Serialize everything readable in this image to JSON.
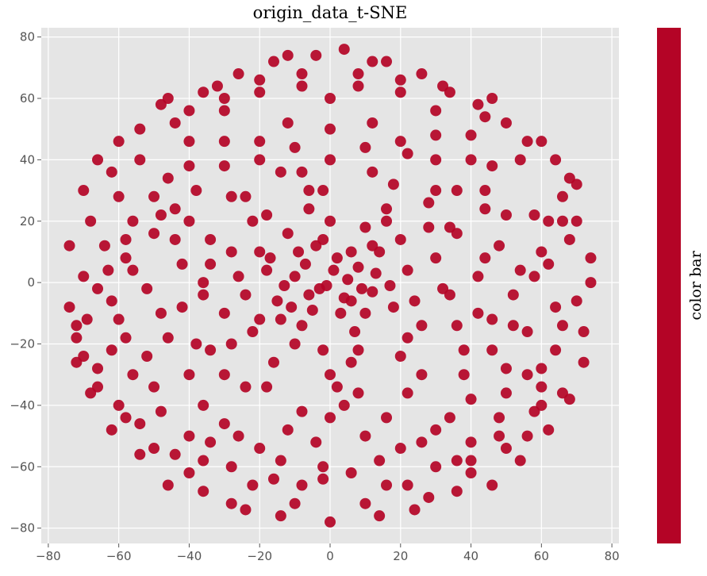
{
  "chart_data": {
    "type": "scatter",
    "title": "origin_data_t-SNE",
    "xlabel": "",
    "ylabel": "",
    "xlim": [
      -82,
      82
    ],
    "ylim": [
      -85,
      83
    ],
    "xticks": [
      -80,
      -60,
      -40,
      -20,
      0,
      20,
      40,
      60,
      80
    ],
    "yticks": [
      80,
      60,
      40,
      20,
      0,
      -20,
      -40,
      -60,
      -80
    ],
    "xtick_labels": [
      "−80",
      "−60",
      "−40",
      "−20",
      "0",
      "20",
      "40",
      "60",
      "80"
    ],
    "ytick_labels": [
      "80",
      "60",
      "40",
      "20",
      "0",
      "−20",
      "−40",
      "−60",
      "−80"
    ],
    "grid": true,
    "background": "#e5e5e5",
    "point_color": "#b40426",
    "points": [
      [
        -1,
        -1
      ],
      [
        5,
        1
      ],
      [
        -6,
        -4
      ],
      [
        8,
        5
      ],
      [
        -10,
        2
      ],
      [
        2,
        8
      ],
      [
        -4,
        12
      ],
      [
        12,
        -3
      ],
      [
        -15,
        -6
      ],
      [
        3,
        -10
      ],
      [
        -8,
        -14
      ],
      [
        14,
        10
      ],
      [
        -18,
        4
      ],
      [
        7,
        -16
      ],
      [
        18,
        -8
      ],
      [
        -12,
        16
      ],
      [
        0,
        20
      ],
      [
        -20,
        -12
      ],
      [
        22,
        4
      ],
      [
        10,
        18
      ],
      [
        -26,
        2
      ],
      [
        -2,
        -22
      ],
      [
        26,
        -14
      ],
      [
        -22,
        20
      ],
      [
        16,
        24
      ],
      [
        -30,
        -10
      ],
      [
        6,
        -26
      ],
      [
        30,
        8
      ],
      [
        -16,
        -26
      ],
      [
        32,
        -2
      ],
      [
        -34,
        14
      ],
      [
        20,
        -24
      ],
      [
        -6,
        30
      ],
      [
        -36,
        -4
      ],
      [
        36,
        16
      ],
      [
        -28,
        28
      ],
      [
        28,
        26
      ],
      [
        2,
        -34
      ],
      [
        -38,
        -20
      ],
      [
        38,
        -22
      ],
      [
        -14,
        36
      ],
      [
        12,
        36
      ],
      [
        -42,
        6
      ],
      [
        42,
        2
      ],
      [
        -24,
        -34
      ],
      [
        22,
        -36
      ],
      [
        -44,
        24
      ],
      [
        44,
        24
      ],
      [
        0,
        40
      ],
      [
        -40,
        -30
      ],
      [
        46,
        -12
      ],
      [
        -8,
        -42
      ],
      [
        -30,
        38
      ],
      [
        30,
        40
      ],
      [
        16,
        -44
      ],
      [
        -48,
        -10
      ],
      [
        48,
        12
      ],
      [
        -20,
        46
      ],
      [
        20,
        46
      ],
      [
        -50,
        16
      ],
      [
        50,
        -28
      ],
      [
        -36,
        -40
      ],
      [
        34,
        -44
      ],
      [
        0,
        50
      ],
      [
        -52,
        -24
      ],
      [
        54,
        4
      ],
      [
        -12,
        52
      ],
      [
        12,
        52
      ],
      [
        -46,
        34
      ],
      [
        46,
        38
      ],
      [
        -4,
        -52
      ],
      [
        -26,
        -50
      ],
      [
        26,
        -52
      ],
      [
        -56,
        4
      ],
      [
        56,
        -16
      ],
      [
        -40,
        46
      ],
      [
        40,
        48
      ],
      [
        -58,
        -18
      ],
      [
        58,
        22
      ],
      [
        -14,
        -58
      ],
      [
        14,
        -58
      ],
      [
        -30,
        56
      ],
      [
        30,
        56
      ],
      [
        -60,
        28
      ],
      [
        60,
        -34
      ],
      [
        -48,
        -42
      ],
      [
        48,
        -44
      ],
      [
        0,
        60
      ],
      [
        -62,
        -6
      ],
      [
        62,
        6
      ],
      [
        -20,
        62
      ],
      [
        20,
        62
      ],
      [
        -54,
        40
      ],
      [
        54,
        40
      ],
      [
        -2,
        -64
      ],
      [
        -36,
        -58
      ],
      [
        36,
        -58
      ],
      [
        -64,
        12
      ],
      [
        64,
        -22
      ],
      [
        -44,
        52
      ],
      [
        44,
        54
      ],
      [
        -66,
        -28
      ],
      [
        66,
        28
      ],
      [
        -8,
        68
      ],
      [
        8,
        68
      ],
      [
        -22,
        -66
      ],
      [
        22,
        -66
      ],
      [
        -58,
        -44
      ],
      [
        58,
        -42
      ],
      [
        -32,
        64
      ],
      [
        32,
        64
      ],
      [
        -70,
        2
      ],
      [
        70,
        -6
      ],
      [
        -68,
        20
      ],
      [
        68,
        14
      ],
      [
        -10,
        -72
      ],
      [
        10,
        -72
      ],
      [
        0,
        -78
      ],
      [
        -74,
        -8
      ],
      [
        74,
        8
      ],
      [
        -50,
        -54
      ],
      [
        50,
        -54
      ],
      [
        -40,
        -62
      ],
      [
        40,
        -62
      ],
      [
        -60,
        46
      ],
      [
        60,
        46
      ],
      [
        -72,
        -18
      ],
      [
        72,
        -16
      ],
      [
        -16,
        72
      ],
      [
        16,
        72
      ],
      [
        -4,
        74
      ],
      [
        4,
        76
      ],
      [
        -28,
        -72
      ],
      [
        28,
        -70
      ],
      [
        -66,
        -34
      ],
      [
        66,
        -36
      ],
      [
        -46,
        60
      ],
      [
        46,
        60
      ],
      [
        -62,
        -48
      ],
      [
        62,
        -48
      ],
      [
        -70,
        30
      ],
      [
        70,
        32
      ],
      [
        -2,
        -60
      ],
      [
        -34,
        6
      ],
      [
        34,
        -4
      ],
      [
        -3,
        -2
      ],
      [
        4,
        -5
      ],
      [
        -7,
        6
      ],
      [
        9,
        -2
      ],
      [
        -11,
        -8
      ],
      [
        1,
        4
      ],
      [
        6,
        10
      ],
      [
        -9,
        10
      ],
      [
        13,
        3
      ],
      [
        -13,
        -1
      ],
      [
        -5,
        -9
      ],
      [
        10,
        -10
      ],
      [
        -17,
        8
      ],
      [
        17,
        -1
      ],
      [
        -2,
        14
      ],
      [
        -24,
        -4
      ],
      [
        24,
        -6
      ],
      [
        -10,
        -20
      ],
      [
        8,
        -22
      ],
      [
        -20,
        10
      ],
      [
        20,
        14
      ],
      [
        -28,
        -20
      ],
      [
        28,
        18
      ],
      [
        -6,
        24
      ],
      [
        6,
        -6
      ],
      [
        34,
        18
      ],
      [
        -34,
        -22
      ],
      [
        -18,
        -34
      ],
      [
        18,
        32
      ],
      [
        38,
        -30
      ],
      [
        -38,
        30
      ],
      [
        -52,
        -2
      ],
      [
        52,
        -4
      ],
      [
        -42,
        -8
      ],
      [
        42,
        -10
      ],
      [
        -66,
        -2
      ],
      [
        -69,
        -12
      ],
      [
        -72,
        -14
      ],
      [
        -63,
        4
      ],
      [
        -58,
        8
      ],
      [
        -56,
        -30
      ],
      [
        56,
        -30
      ],
      [
        -60,
        -40
      ],
      [
        60,
        -40
      ],
      [
        -54,
        -56
      ],
      [
        54,
        -58
      ],
      [
        -46,
        -66
      ],
      [
        46,
        -66
      ],
      [
        -36,
        -68
      ],
      [
        36,
        -68
      ],
      [
        -24,
        -74
      ],
      [
        24,
        -74
      ],
      [
        -14,
        -76
      ],
      [
        14,
        -76
      ],
      [
        -68,
        -36
      ],
      [
        68,
        -38
      ],
      [
        -72,
        -26
      ],
      [
        72,
        -26
      ],
      [
        -74,
        12
      ],
      [
        74,
        0
      ],
      [
        -70,
        -24
      ],
      [
        62,
        20
      ],
      [
        66,
        20
      ],
      [
        70,
        20
      ],
      [
        -54,
        50
      ],
      [
        -62,
        36
      ],
      [
        -66,
        40
      ],
      [
        -36,
        62
      ],
      [
        -26,
        68
      ],
      [
        -12,
        74
      ],
      [
        12,
        72
      ],
      [
        26,
        68
      ],
      [
        34,
        62
      ],
      [
        42,
        58
      ],
      [
        50,
        52
      ],
      [
        56,
        46
      ],
      [
        64,
        40
      ],
      [
        68,
        34
      ],
      [
        -48,
        58
      ],
      [
        -40,
        56
      ],
      [
        -30,
        60
      ],
      [
        -20,
        66
      ],
      [
        -8,
        64
      ],
      [
        8,
        64
      ],
      [
        20,
        66
      ],
      [
        -58,
        14
      ],
      [
        -50,
        28
      ],
      [
        -44,
        14
      ],
      [
        -46,
        -18
      ],
      [
        -50,
        -34
      ],
      [
        -40,
        -50
      ],
      [
        -30,
        -46
      ],
      [
        -20,
        -54
      ],
      [
        -12,
        -48
      ],
      [
        0,
        -44
      ],
      [
        10,
        -50
      ],
      [
        20,
        -54
      ],
      [
        30,
        -48
      ],
      [
        40,
        -52
      ],
      [
        50,
        -36
      ],
      [
        46,
        -22
      ],
      [
        52,
        -14
      ],
      [
        44,
        8
      ],
      [
        50,
        22
      ],
      [
        44,
        30
      ],
      [
        36,
        30
      ],
      [
        40,
        40
      ],
      [
        30,
        48
      ],
      [
        22,
        42
      ],
      [
        10,
        44
      ],
      [
        -10,
        44
      ],
      [
        -20,
        40
      ],
      [
        -30,
        46
      ],
      [
        -40,
        38
      ],
      [
        -48,
        22
      ],
      [
        -56,
        20
      ],
      [
        -60,
        -12
      ],
      [
        -62,
        -22
      ],
      [
        -54,
        -46
      ],
      [
        -44,
        -56
      ],
      [
        -34,
        -52
      ],
      [
        -28,
        -60
      ],
      [
        -16,
        -64
      ],
      [
        -8,
        -66
      ],
      [
        6,
        -62
      ],
      [
        16,
        -66
      ],
      [
        30,
        -60
      ],
      [
        40,
        -58
      ],
      [
        48,
        -50
      ],
      [
        56,
        -50
      ],
      [
        60,
        -28
      ],
      [
        64,
        -8
      ],
      [
        66,
        -14
      ],
      [
        58,
        2
      ],
      [
        60,
        10
      ],
      [
        -28,
        10
      ],
      [
        -14,
        -12
      ],
      [
        12,
        12
      ],
      [
        -22,
        -16
      ],
      [
        22,
        -18
      ],
      [
        -18,
        22
      ],
      [
        16,
        20
      ],
      [
        -24,
        28
      ],
      [
        26,
        -30
      ],
      [
        -30,
        -30
      ],
      [
        30,
        30
      ],
      [
        -8,
        36
      ],
      [
        8,
        -36
      ],
      [
        -36,
        0
      ],
      [
        36,
        -14
      ],
      [
        -2,
        30
      ],
      [
        4,
        -40
      ],
      [
        -40,
        20
      ],
      [
        40,
        -38
      ],
      [
        0,
        -30
      ]
    ],
    "colorbar_label": "color bar",
    "colorbar_color": "#b40426"
  }
}
